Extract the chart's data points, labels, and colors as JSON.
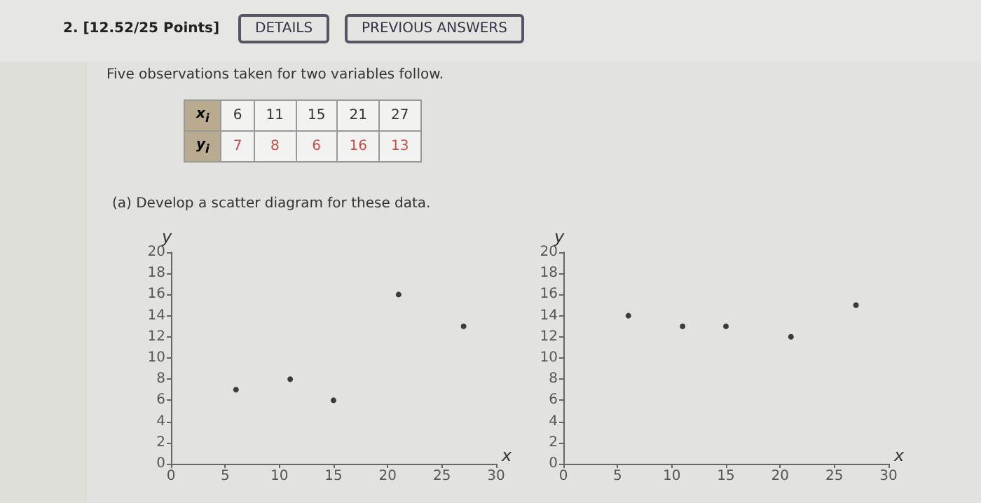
{
  "chart_data": [
    {
      "type": "other",
      "annotations": [
        "2. [12.52/25 Points]",
        "DETAILS",
        "PREVIOUS ANSWERS",
        "Five observations taken for two variables follow.",
        "(a) Develop a scatter diagram for these data.",
        "x$_{i}$",
        "6",
        "11",
        "15",
        "21",
        "27",
        "y$_{i}$",
        "7",
        "8",
        "6",
        "16",
        "13"
      ]
    },
    {
      "type": "scatter",
      "xlabel": "x",
      "ylabel": "y",
      "x": [
        6,
        11,
        15,
        21,
        27
      ],
      "series": [
        {
          "color": "#111111",
          "values": [
            7,
            8,
            6,
            16,
            13
          ]
        }
      ],
      "marker": "circle",
      "grid": false,
      "xlim": [
        0,
        30
      ],
      "xticks": [
        0,
        5,
        10,
        15,
        20,
        25,
        30
      ],
      "ylim": [
        0,
        20
      ],
      "yticks": [
        0,
        2,
        4,
        6,
        8,
        10,
        12,
        14,
        16,
        18,
        20
      ]
    },
    {
      "type": "scatter",
      "xlabel": "x",
      "ylabel": "y",
      "x": [
        6,
        11,
        15,
        21,
        27
      ],
      "series": [
        {
          "color": "#111111",
          "values": [
            14,
            13,
            13,
            12,
            15
          ]
        }
      ],
      "marker": "circle",
      "grid": false,
      "xlim": [
        0,
        30
      ],
      "xticks": [
        0,
        5,
        10,
        15,
        20,
        25,
        30
      ],
      "ylim": [
        0,
        20
      ],
      "yticks": [
        0,
        2,
        4,
        6,
        8,
        10,
        12,
        14,
        16,
        18,
        20
      ]
    }
  ]
}
